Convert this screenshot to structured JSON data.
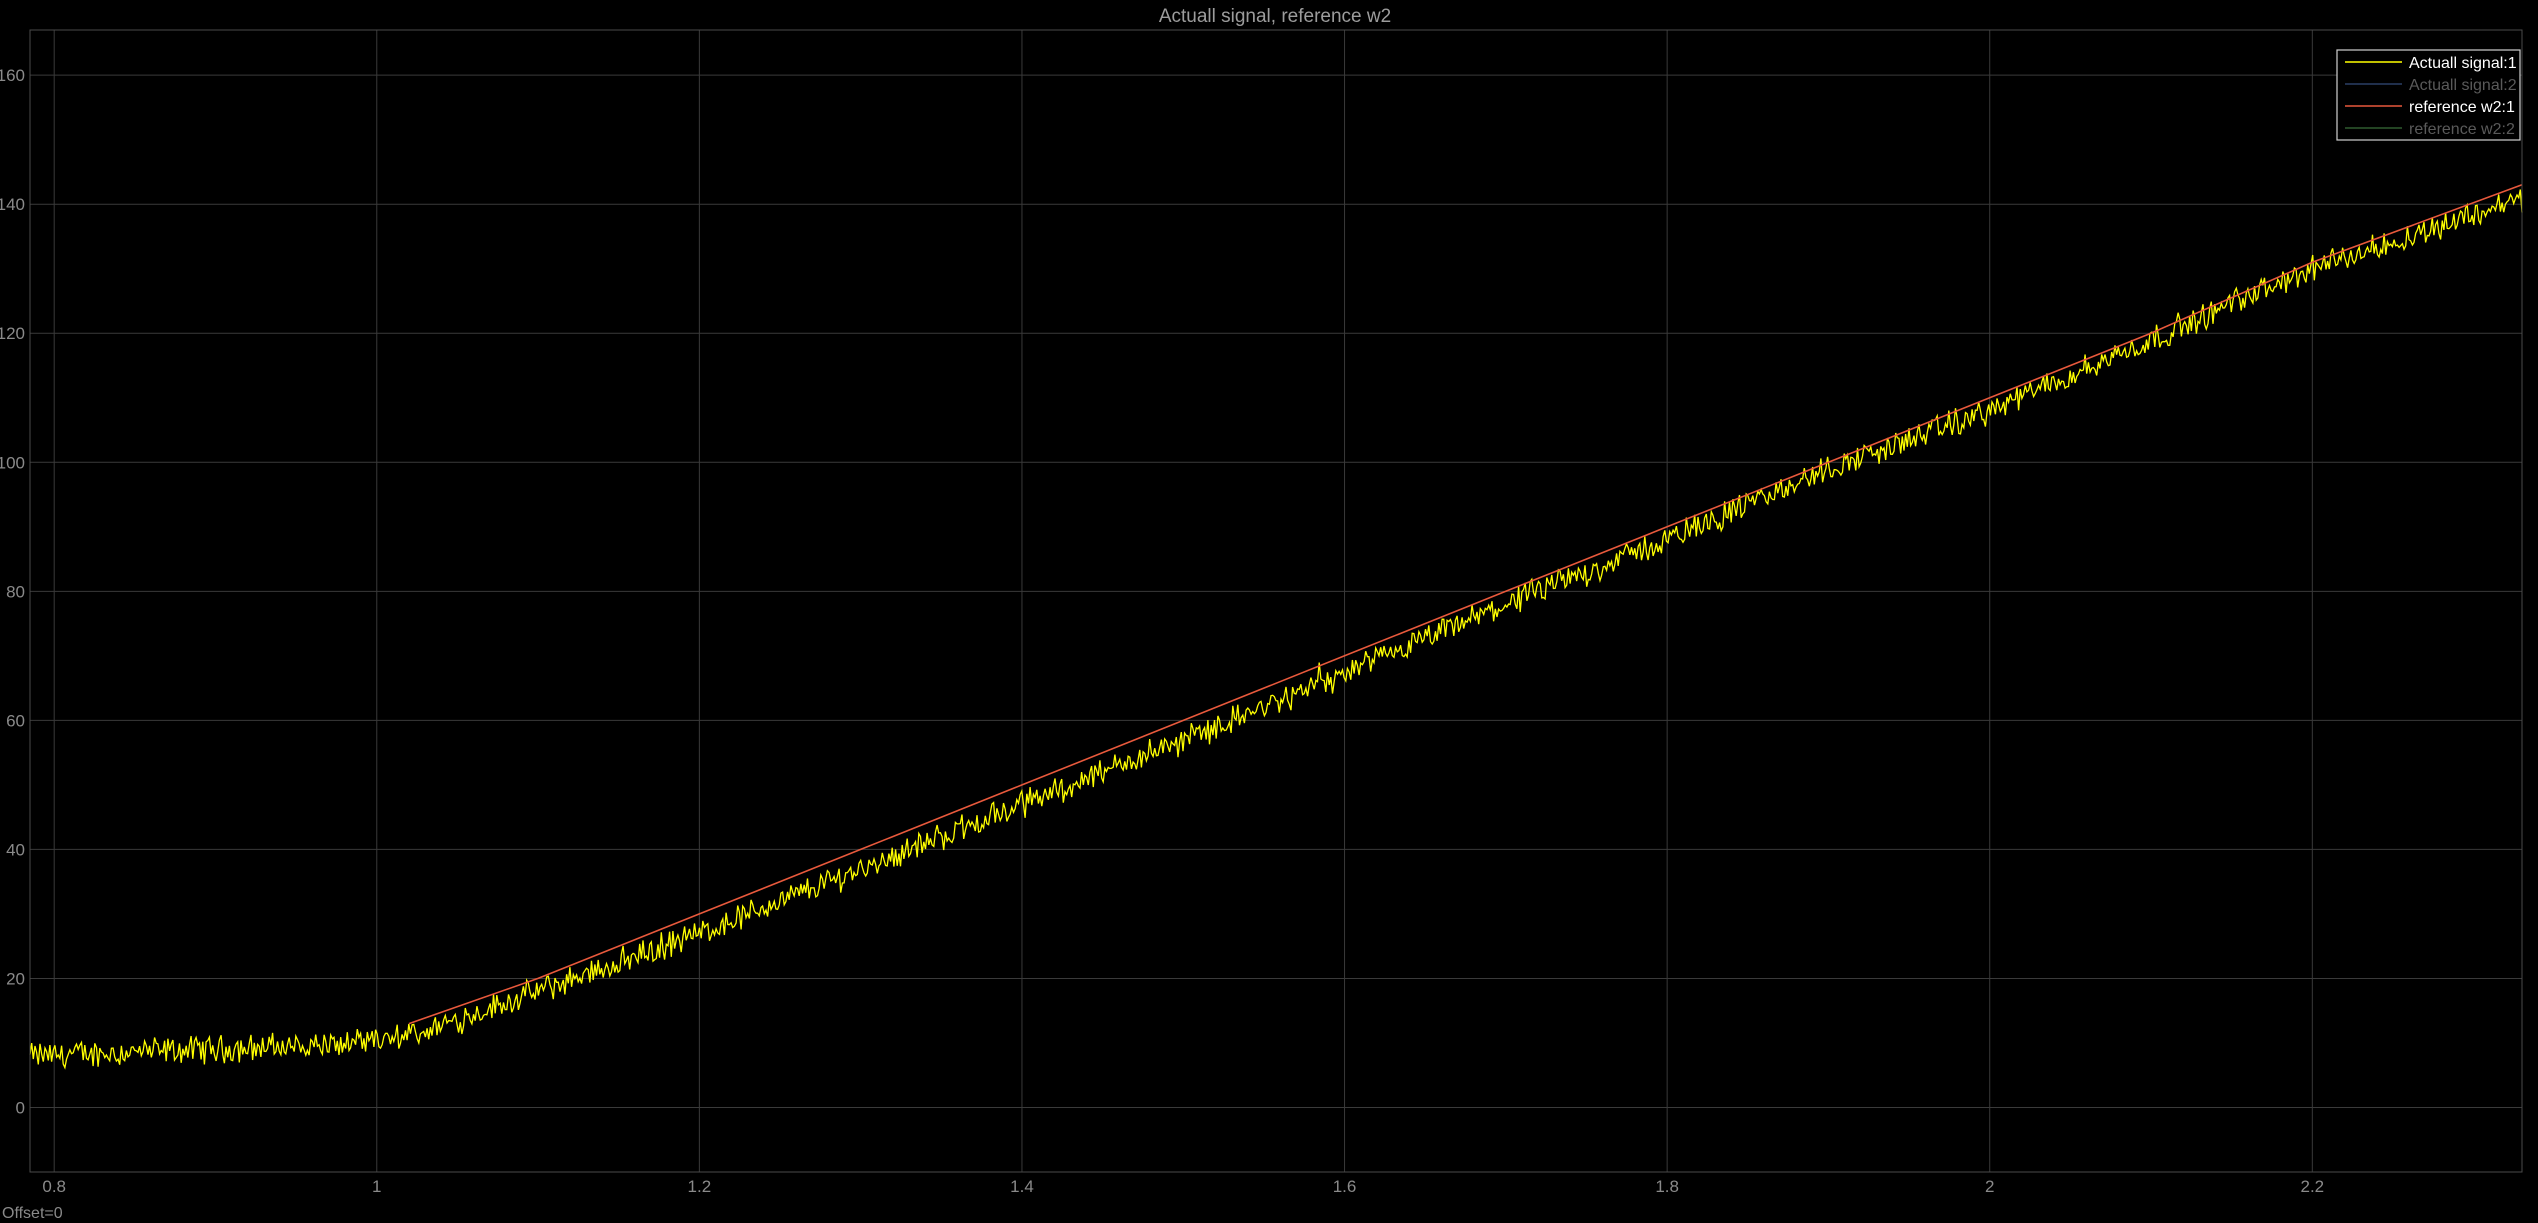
{
  "window": {
    "offset_label": "Offset=0"
  },
  "colors": {
    "background": "#000000",
    "plot_area": "#000000",
    "grid": "#3a3a3a",
    "tick_text": "#8a8a8a",
    "title_text": "#9c9c9c",
    "legend_active_text": "#ffffff",
    "legend_inactive_text": "#5a5a5a"
  },
  "chart_data": {
    "type": "line",
    "title": "Actuall signal, reference w2",
    "xlabel": "",
    "ylabel": "",
    "xlim": [
      0.785,
      2.33
    ],
    "ylim": [
      -10,
      167
    ],
    "grid": true,
    "legend_position": "top-right",
    "x_ticks": [
      0.8,
      1,
      1.2,
      1.4,
      1.6,
      1.8,
      2,
      2.2
    ],
    "y_ticks": [
      0,
      20,
      40,
      60,
      80,
      100,
      120,
      140,
      160
    ],
    "series": [
      {
        "name": "Actuall signal:1",
        "color": "#ffff00",
        "visible": true,
        "noisy": true,
        "description_points": {
          "x": [
            0.785,
            1.0,
            1.02,
            1.1,
            1.2,
            1.3,
            1.4,
            1.5,
            1.6,
            1.7,
            1.8,
            1.9,
            2.0,
            2.1,
            2.2,
            2.33
          ],
          "y": [
            8,
            10,
            11,
            18,
            27,
            37,
            47,
            57,
            67,
            78,
            88,
            99,
            108,
            119,
            130,
            141
          ]
        }
      },
      {
        "name": "Actuall signal:2",
        "color": "#2a3f66",
        "visible": false
      },
      {
        "name": "reference w2:1",
        "color": "#e8593c",
        "visible": true,
        "x": [
          1.02,
          1.1,
          1.2,
          1.3,
          1.4,
          1.5,
          1.6,
          1.7,
          1.8,
          1.9,
          2.0,
          2.1,
          2.2,
          2.33
        ],
        "y": [
          13,
          20,
          30,
          40,
          50,
          60,
          70,
          80,
          90,
          100,
          110,
          120,
          131,
          143
        ]
      },
      {
        "name": "reference w2:2",
        "color": "#2f5a2f",
        "visible": false
      }
    ]
  }
}
